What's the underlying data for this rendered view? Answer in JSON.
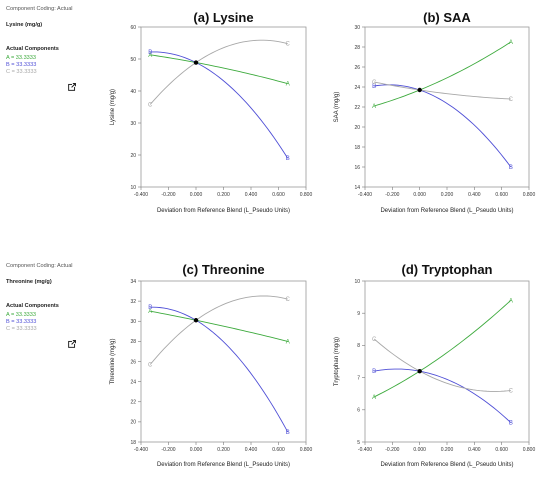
{
  "panels": [
    {
      "id": "lysine",
      "side": {
        "coding": "Component Coding: Actual",
        "response": "Lysine (mg/g)",
        "actual": "Actual Components",
        "components": [
          {
            "text": "A = 33.3333",
            "color": "#3daa3d"
          },
          {
            "text": "B = 33.3333",
            "color": "#4f4fd6"
          },
          {
            "text": "C = 33.3333",
            "color": "#a8a8a8"
          }
        ],
        "icon": "open-in-new-icon"
      },
      "chart_data": {
        "type": "line",
        "title": "(a) Lysine",
        "xlabel": "Deviation from Reference Blend (L_Pseudo Units)",
        "ylabel": "Lysine (mg/g)",
        "xlim": [
          -0.4,
          0.8
        ],
        "ylim": [
          10,
          60
        ],
        "xticks": [
          "-0.400",
          "-0.200",
          "0.000",
          "0.200",
          "0.400",
          "0.600",
          "0.800"
        ],
        "yticks": [
          "10",
          "20",
          "30",
          "40",
          "50",
          "60"
        ],
        "reference_point": [
          0.0,
          48.9
        ],
        "series": [
          {
            "name": "A",
            "color": "#3daa3d",
            "x": [
              -0.333,
              0.0,
              0.667
            ],
            "y": [
              51.3,
              48.9,
              42.3
            ]
          },
          {
            "name": "B",
            "color": "#4f4fd6",
            "x": [
              -0.333,
              0.0,
              0.667
            ],
            "y": [
              52.2,
              48.9,
              19.0
            ]
          },
          {
            "name": "C",
            "color": "#a8a8a8",
            "x": [
              -0.333,
              0.0,
              0.667
            ],
            "y": [
              35.8,
              48.9,
              54.8
            ]
          }
        ]
      }
    },
    {
      "id": "saa",
      "chart_data": {
        "type": "line",
        "title": "(b) SAA",
        "xlabel": "Deviation from Reference Blend (L_Pseudo Units)",
        "ylabel": "SAA (mg/g)",
        "xlim": [
          -0.4,
          0.8
        ],
        "ylim": [
          14,
          30
        ],
        "xticks": [
          "-0.400",
          "-0.200",
          "0.000",
          "0.200",
          "0.400",
          "0.600",
          "0.800"
        ],
        "yticks": [
          "14",
          "16",
          "18",
          "20",
          "22",
          "24",
          "26",
          "28",
          "30"
        ],
        "reference_point": [
          0.0,
          23.7
        ],
        "series": [
          {
            "name": "A",
            "color": "#3daa3d",
            "x": [
              -0.333,
              0.0,
              0.667
            ],
            "y": [
              22.1,
              23.7,
              28.5
            ]
          },
          {
            "name": "B",
            "color": "#4f4fd6",
            "x": [
              -0.333,
              0.0,
              0.667
            ],
            "y": [
              24.1,
              23.7,
              16.0
            ]
          },
          {
            "name": "C",
            "color": "#a8a8a8",
            "x": [
              -0.333,
              0.0,
              0.667
            ],
            "y": [
              24.5,
              23.7,
              22.8
            ]
          }
        ]
      }
    },
    {
      "id": "threonine",
      "side": {
        "coding": "Component Coding: Actual",
        "response": "Threonine (mg/g)",
        "actual": "Actual Components",
        "components": [
          {
            "text": "A = 33.3333",
            "color": "#3daa3d"
          },
          {
            "text": "B = 33.3333",
            "color": "#4f4fd6"
          },
          {
            "text": "C = 33.3333",
            "color": "#a8a8a8"
          }
        ],
        "icon": "open-in-new-icon"
      },
      "chart_data": {
        "type": "line",
        "title": "(c) Threonine",
        "xlabel": "Deviation from Reference Blend (L_Pseudo Units)",
        "ylabel": "Threonine (mg/g)",
        "xlim": [
          -0.4,
          0.8
        ],
        "ylim": [
          18,
          34
        ],
        "xticks": [
          "-0.400",
          "-0.200",
          "0.000",
          "0.200",
          "0.400",
          "0.600",
          "0.800"
        ],
        "yticks": [
          "18",
          "20",
          "22",
          "24",
          "26",
          "28",
          "30",
          "32",
          "34"
        ],
        "reference_point": [
          0.0,
          30.1
        ],
        "series": [
          {
            "name": "A",
            "color": "#3daa3d",
            "x": [
              -0.333,
              0.0,
              0.667
            ],
            "y": [
              31.0,
              30.1,
              28.0
            ]
          },
          {
            "name": "B",
            "color": "#4f4fd6",
            "x": [
              -0.333,
              0.0,
              0.667
            ],
            "y": [
              31.4,
              30.1,
              19.0
            ]
          },
          {
            "name": "C",
            "color": "#a8a8a8",
            "x": [
              -0.333,
              0.0,
              0.667
            ],
            "y": [
              25.7,
              30.1,
              32.2
            ]
          }
        ]
      }
    },
    {
      "id": "tryptophan",
      "chart_data": {
        "type": "line",
        "title": "(d) Tryptophan",
        "xlabel": "Deviation from Reference Blend (L_Pseudo Units)",
        "ylabel": "Tryptophan (mg/g)",
        "xlim": [
          -0.4,
          0.8
        ],
        "ylim": [
          5,
          10
        ],
        "xticks": [
          "-0.400",
          "-0.200",
          "0.000",
          "0.200",
          "0.400",
          "0.600",
          "0.800"
        ],
        "yticks": [
          "5",
          "6",
          "7",
          "8",
          "9",
          "10"
        ],
        "reference_point": [
          0.0,
          7.2
        ],
        "series": [
          {
            "name": "A",
            "color": "#3daa3d",
            "x": [
              -0.333,
              0.0,
              0.667
            ],
            "y": [
              6.4,
              7.2,
              9.4
            ]
          },
          {
            "name": "B",
            "color": "#4f4fd6",
            "x": [
              -0.333,
              0.0,
              0.667
            ],
            "y": [
              7.2,
              7.2,
              5.6
            ]
          },
          {
            "name": "C",
            "color": "#a8a8a8",
            "x": [
              -0.333,
              0.0,
              0.667
            ],
            "y": [
              8.2,
              7.2,
              6.6
            ]
          }
        ]
      }
    }
  ]
}
